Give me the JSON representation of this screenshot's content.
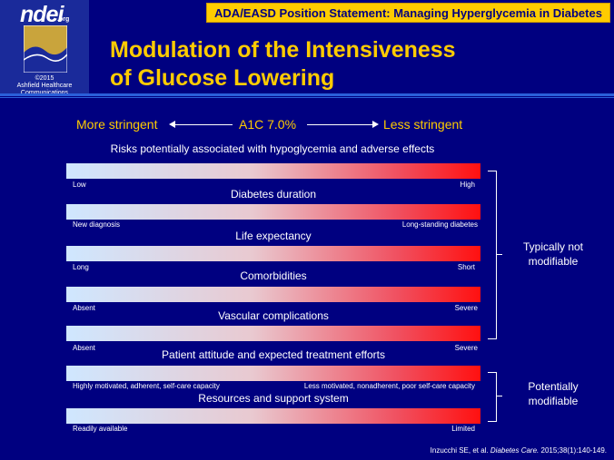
{
  "logo": {
    "name": "ndei",
    "suffix": ".org",
    "copyright_line1": "©2015",
    "copyright_line2": "Ashfield Healthcare",
    "copyright_line3": "Communications"
  },
  "header": {
    "banner": "ADA/EASD Position Statement: Managing Hyperglycemia in Diabetes"
  },
  "title": {
    "line1": "Modulation of the Intensiveness",
    "line2": "of Glucose Lowering"
  },
  "scale": {
    "left": "More stringent",
    "center": "A1C 7.0%",
    "right": "Less stringent"
  },
  "risk_label": "Risks potentially associated with hypoglycemia and adverse effects",
  "bars": [
    {
      "category": "",
      "low": "Low",
      "high": "High"
    },
    {
      "category": "Diabetes duration",
      "low": "New diagnosis",
      "high": "Long-standing diabetes"
    },
    {
      "category": "Life expectancy",
      "low": "Long",
      "high": "Short"
    },
    {
      "category": "Comorbidities",
      "low": "Absent",
      "high": "Severe"
    },
    {
      "category": "Vascular complications",
      "low": "Absent",
      "high": "Severe"
    },
    {
      "category": "Patient attitude and expected treatment efforts",
      "low": "Highly motivated, adherent, self-care capacity",
      "high": "Less motivated, nonadherent, poor self-care capacity"
    },
    {
      "category": "Resources and support system",
      "low": "Readily available",
      "high": "Limited"
    }
  ],
  "brackets": {
    "not_modifiable_line1": "Typically not",
    "not_modifiable_line2": "modifiable",
    "modifiable_line1": "Potentially",
    "modifiable_line2": "modifiable"
  },
  "citation": {
    "authors": "Inzucchi SE, et al.",
    "journal": "Diabetes Care.",
    "ref": "2015;38(1):140-149."
  },
  "colors": {
    "background": "#000080",
    "accent": "#ffcc00",
    "bar_low": "#cfe7ff",
    "bar_high": "#ff1010"
  }
}
